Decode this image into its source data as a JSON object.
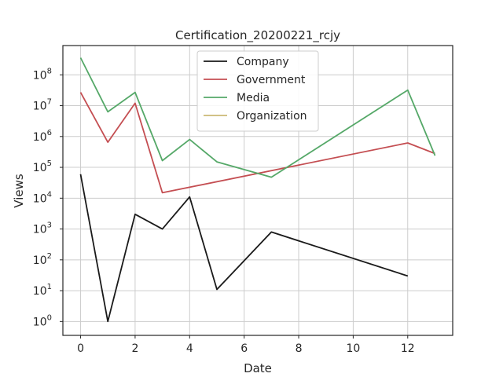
{
  "chart_data": {
    "type": "line",
    "title": "Certification_20200221_rcjy",
    "xlabel": "Date",
    "ylabel": "Views",
    "y_scale": "log",
    "xlim": [
      -0.65,
      13.65
    ],
    "ylim_log10": [
      -0.45,
      8.95
    ],
    "x_ticks": [
      0,
      2,
      4,
      6,
      8,
      10,
      12
    ],
    "y_ticks": [
      {
        "base": "10",
        "exp": "0",
        "value": 1
      },
      {
        "base": "10",
        "exp": "1",
        "value": 10
      },
      {
        "base": "10",
        "exp": "2",
        "value": 100
      },
      {
        "base": "10",
        "exp": "3",
        "value": 1000
      },
      {
        "base": "10",
        "exp": "4",
        "value": 10000
      },
      {
        "base": "10",
        "exp": "5",
        "value": 100000
      },
      {
        "base": "10",
        "exp": "6",
        "value": 1000000
      },
      {
        "base": "10",
        "exp": "7",
        "value": 10000000
      },
      {
        "base": "10",
        "exp": "8",
        "value": 100000000
      }
    ],
    "grid": true,
    "legend_position": "top-center",
    "series": [
      {
        "name": "Company",
        "color": "#1a1a1a",
        "x": [
          0,
          1,
          2,
          3,
          4,
          5,
          7,
          12
        ],
        "y": [
          60000,
          1,
          3000,
          1000,
          11000,
          11,
          800,
          30
        ]
      },
      {
        "name": "Government",
        "color": "#c44e52",
        "x": [
          0,
          1,
          2,
          3,
          12,
          13
        ],
        "y": [
          27000000,
          650000,
          12000000,
          15000,
          620000,
          280000
        ]
      },
      {
        "name": "Media",
        "color": "#55a868",
        "x": [
          0,
          1,
          2,
          3,
          4,
          5,
          7,
          12,
          13
        ],
        "y": [
          360000000,
          6300000,
          27000000,
          165000,
          800000,
          150000,
          48000,
          32000000,
          240000
        ]
      },
      {
        "name": "Organization",
        "color": "#ccb974",
        "x": [],
        "y": []
      }
    ]
  }
}
